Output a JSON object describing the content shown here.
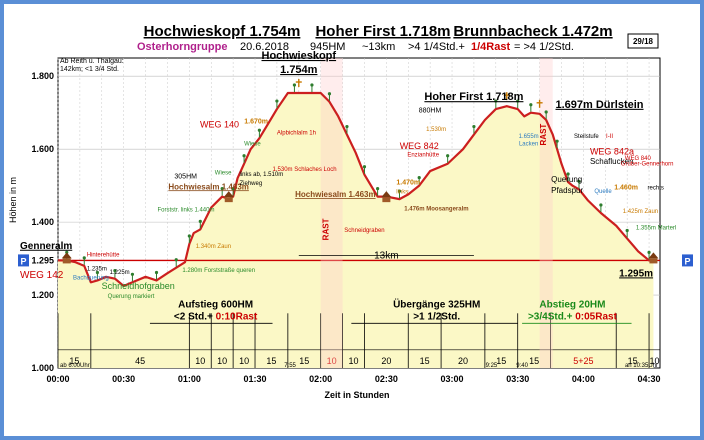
{
  "header": {
    "title_parts": [
      "Hochwieskopf 1.754m",
      "Hoher First 1.718m",
      "Brunnbacheck 1.472m"
    ],
    "group": "Osterhorngruppe",
    "date": "20.6.2018",
    "hm": "945HM",
    "dist": "~13km",
    "time_a": ">4 1/4Std.+",
    "rast": "1/4Rast",
    "time_b": "= >4 1/2Std.",
    "badge": "29/18",
    "note_line1": "Ab Reith ü. Thalgau:",
    "note_line2": "142km; <1 3/4 Std."
  },
  "chart_data": {
    "type": "area",
    "xlabel": "Zeit in Stunden",
    "ylabel": "Höhen in m",
    "x_unit": "minutes",
    "xlim": [
      0,
      275
    ],
    "ylim": [
      1000,
      1850
    ],
    "xticks": [
      {
        "value": 0,
        "label": "00:00"
      },
      {
        "value": 30,
        "label": "00:30"
      },
      {
        "value": 60,
        "label": "01:00"
      },
      {
        "value": 90,
        "label": "01:30"
      },
      {
        "value": 120,
        "label": "02:00"
      },
      {
        "value": 150,
        "label": "02:30"
      },
      {
        "value": 180,
        "label": "03:00"
      },
      {
        "value": 210,
        "label": "03:30"
      },
      {
        "value": 240,
        "label": "04:00"
      },
      {
        "value": 270,
        "label": "04:30"
      }
    ],
    "yticks": [
      {
        "value": 1000,
        "label": "1.000"
      },
      {
        "value": 1200,
        "label": "1.200"
      },
      {
        "value": 1295,
        "label": "1.295"
      },
      {
        "value": 1400,
        "label": "1.400"
      },
      {
        "value": 1600,
        "label": "1.600"
      },
      {
        "value": 1800,
        "label": "1.800"
      }
    ],
    "grid": true,
    "series": [
      {
        "x": [
          0,
          4,
          8,
          12,
          15,
          18,
          22,
          26,
          30,
          34,
          40,
          45,
          50,
          54,
          58,
          60,
          62,
          65,
          70,
          75,
          78,
          80,
          82,
          85,
          88,
          92,
          96,
          100,
          105,
          108,
          112,
          116,
          120,
          124,
          128,
          132,
          136,
          140,
          144,
          146,
          150,
          156,
          160,
          165,
          170,
          178,
          185,
          190,
          195,
          200,
          205,
          210,
          213,
          216,
          220,
          223,
          226,
          228,
          230,
          233,
          235,
          238,
          242,
          248,
          255,
          260,
          265,
          270,
          272
        ],
        "y": [
          1295,
          1295,
          1290,
          1280,
          1235,
          1240,
          1250,
          1245,
          1225,
          1235,
          1250,
          1240,
          1260,
          1275,
          1290,
          1340,
          1370,
          1380,
          1440,
          1470,
          1463,
          1470,
          1520,
          1560,
          1600,
          1630,
          1670,
          1710,
          1754,
          1754,
          1754,
          1754,
          1754,
          1730,
          1690,
          1640,
          1590,
          1530,
          1490,
          1470,
          1470,
          1463,
          1476,
          1500,
          1540,
          1560,
          1600,
          1640,
          1680,
          1710,
          1718,
          1710,
          1690,
          1700,
          1697,
          1680,
          1640,
          1600,
          1560,
          1510,
          1500,
          1490,
          1460,
          1425,
          1390,
          1355,
          1320,
          1295,
          1295
        ]
      }
    ],
    "segments": [
      {
        "label": "15",
        "x": [
          0,
          15
        ],
        "color": "#000000"
      },
      {
        "label": "45",
        "x": [
          15,
          60
        ],
        "color": "#000000"
      },
      {
        "label": "10",
        "x": [
          60,
          70
        ],
        "color": "#000000"
      },
      {
        "label": "10",
        "x": [
          70,
          80
        ],
        "color": "#000000"
      },
      {
        "label": "10",
        "x": [
          80,
          90
        ],
        "color": "#000000"
      },
      {
        "label": "15",
        "x": [
          90,
          105
        ],
        "color": "#000000"
      },
      {
        "label": "15",
        "x": [
          105,
          120
        ],
        "color": "#000000"
      },
      {
        "label": "10",
        "x": [
          120,
          130
        ],
        "color": "#cc0000"
      },
      {
        "label": "10",
        "x": [
          130,
          140
        ],
        "color": "#000000"
      },
      {
        "label": "20",
        "x": [
          140,
          160
        ],
        "color": "#000000"
      },
      {
        "label": "15",
        "x": [
          160,
          175
        ],
        "color": "#000000"
      },
      {
        "label": "20",
        "x": [
          175,
          195
        ],
        "color": "#000000"
      },
      {
        "label": "15",
        "x": [
          195,
          210
        ],
        "color": "#000000"
      },
      {
        "label": "15",
        "x": [
          210,
          225
        ],
        "color": "#000000"
      },
      {
        "label": "5+25",
        "x": [
          225,
          255
        ],
        "color": "#cc0000"
      },
      {
        "label": "15",
        "x": [
          255,
          270
        ],
        "color": "#000000"
      },
      {
        "label": "10",
        "x": [
          270,
          275
        ],
        "color": "#000000"
      }
    ],
    "rast": [
      {
        "x": [
          120,
          130
        ],
        "label": "RAST"
      },
      {
        "x": [
          220,
          226
        ],
        "label": "RAST"
      }
    ],
    "annotations": [
      {
        "text": "Genneralm",
        "x": 0,
        "y": 1305,
        "color": "#000000",
        "size": 10,
        "bold": true,
        "underline": true,
        "anchor": "start",
        "dx": -38,
        "dy": -8
      },
      {
        "text": "WEG 142",
        "x": 0,
        "y": 1280,
        "color": "#cc0000",
        "size": 10,
        "anchor": "start",
        "dx": -38,
        "dy": 12
      },
      {
        "text": "Hinterehütte",
        "x": 4,
        "y": 1295,
        "color": "#cc0000",
        "size": 6,
        "anchor": "start",
        "dx": 20,
        "dy": -4
      },
      {
        "text": "1.235m",
        "x": 15,
        "y": 1235,
        "color": "#000000",
        "size": 6,
        "anchor": "middle",
        "dx": 6,
        "dy": -12
      },
      {
        "text": "Bachquerung",
        "x": 15,
        "y": 1235,
        "color": "#2c7bc0",
        "size": 6,
        "anchor": "middle",
        "dx": 0,
        "dy": -3
      },
      {
        "text": "1.225m",
        "x": 30,
        "y": 1225,
        "color": "#000000",
        "size": 6,
        "anchor": "middle",
        "dx": -4,
        "dy": -12
      },
      {
        "text": "Schneidhofgraben",
        "x": 30,
        "y": 1225,
        "color": "#2a8a2a",
        "size": 9,
        "anchor": "start",
        "dx": -22,
        "dy": 3
      },
      {
        "text": "Querung markiert",
        "x": 30,
        "y": 1225,
        "color": "#2a8a2a",
        "size": 6,
        "anchor": "start",
        "dx": -16,
        "dy": 12
      },
      {
        "text": "1.280m Forststraße queren",
        "x": 55,
        "y": 1280,
        "color": "#2a8a2a",
        "size": 6,
        "anchor": "start",
        "dx": 4,
        "dy": 6
      },
      {
        "text": "1.340m Zaun",
        "x": 62,
        "y": 1340,
        "color": "#c87a00",
        "size": 6,
        "anchor": "start",
        "dx": 2,
        "dy": 4
      },
      {
        "text": "Forststr. links 1.440m",
        "x": 50,
        "y": 1440,
        "color": "#2a8a2a",
        "size": 6,
        "anchor": "start",
        "dx": -10,
        "dy": 4
      },
      {
        "text": "305HM",
        "x": 55,
        "y": 1520,
        "color": "#000000",
        "size": 7,
        "anchor": "start",
        "dx": -4,
        "dy": 0
      },
      {
        "text": "Hochwiesalm 1.463m",
        "x": 55,
        "y": 1490,
        "color": "#8a4b1c",
        "size": 8,
        "bold": true,
        "underline": true,
        "anchor": "start",
        "dx": -10,
        "dy": 0
      },
      {
        "text": "Wiese",
        "x": 80,
        "y": 1530,
        "color": "#2a8a2a",
        "size": 6,
        "anchor": "middle",
        "dx": -10,
        "dy": 0
      },
      {
        "text": "links ab, 1.510m",
        "x": 82,
        "y": 1510,
        "color": "#000000",
        "size": 6,
        "anchor": "start",
        "dx": 2,
        "dy": -6
      },
      {
        "text": "Ziehweg",
        "x": 82,
        "y": 1510,
        "color": "#000000",
        "size": 6,
        "anchor": "start",
        "dx": 2,
        "dy": 3
      },
      {
        "text": "WEG 140",
        "x": 82,
        "y": 1660,
        "color": "#cc0000",
        "size": 9,
        "anchor": "middle",
        "dx": -18,
        "dy": 0
      },
      {
        "text": "Wiese",
        "x": 85,
        "y": 1610,
        "color": "#2a8a2a",
        "size": 6,
        "anchor": "start",
        "dx": 0,
        "dy": 0
      },
      {
        "text": "1.670m",
        "x": 96,
        "y": 1670,
        "color": "#c87a00",
        "size": 7,
        "bold": true,
        "anchor": "middle",
        "dx": -12,
        "dy": 0
      },
      {
        "text": "1.530m Schlaches Loch",
        "x": 98,
        "y": 1540,
        "color": "#cc0000",
        "size": 6,
        "anchor": "start",
        "dx": 0,
        "dy": 0
      },
      {
        "text": "Alpbichlalm 1h",
        "x": 100,
        "y": 1640,
        "color": "#cc0000",
        "size": 6,
        "anchor": "start",
        "dx": 0,
        "dy": 0
      },
      {
        "text": "Hochwieskopf",
        "x": 110,
        "y": 1754,
        "color": "#000000",
        "size": 11,
        "bold": true,
        "underline": true,
        "anchor": "middle",
        "dx": 0,
        "dy": -34
      },
      {
        "text": "1.754m",
        "x": 110,
        "y": 1754,
        "color": "#000000",
        "size": 11,
        "bold": true,
        "underline": true,
        "anchor": "middle",
        "dx": 0,
        "dy": -20
      },
      {
        "text": "Hochwiesalm 1.463m",
        "x": 146,
        "y": 1463,
        "color": "#8a4b1c",
        "size": 8,
        "bold": true,
        "underline": true,
        "anchor": "end",
        "dx": -2,
        "dy": -2
      },
      {
        "text": "Schneidgraben",
        "x": 140,
        "y": 1450,
        "color": "#cc0000",
        "size": 6,
        "anchor": "middle",
        "dx": 0,
        "dy": 28
      },
      {
        "text": "1.470m",
        "x": 160,
        "y": 1470,
        "color": "#c87a00",
        "size": 7,
        "bold": true,
        "anchor": "middle",
        "dx": 0,
        "dy": -12
      },
      {
        "text": "links",
        "x": 160,
        "y": 1470,
        "color": "#c87a00",
        "size": 6,
        "anchor": "middle",
        "dx": -6,
        "dy": -3
      },
      {
        "text": "1.476m Moosangeralm",
        "x": 160,
        "y": 1476,
        "color": "#8a4b1c",
        "size": 6,
        "bold": true,
        "anchor": "start",
        "dx": -4,
        "dy": 16
      },
      {
        "text": "WEG 842",
        "x": 165,
        "y": 1600,
        "color": "#cc0000",
        "size": 9,
        "anchor": "middle",
        "dx": 0,
        "dy": 0
      },
      {
        "text": "Enzianhütte",
        "x": 165,
        "y": 1580,
        "color": "#cc0000",
        "size": 6,
        "anchor": "middle",
        "dx": 4,
        "dy": 0
      },
      {
        "text": "1.530m",
        "x": 170,
        "y": 1650,
        "color": "#c87a00",
        "size": 6,
        "anchor": "middle",
        "dx": 6,
        "dy": 0
      },
      {
        "text": "Hoher First 1.718m",
        "x": 190,
        "y": 1718,
        "color": "#000000",
        "size": 11,
        "bold": true,
        "underline": true,
        "anchor": "middle",
        "dx": 0,
        "dy": -6
      },
      {
        "text": "880HM",
        "x": 180,
        "y": 1700,
        "color": "#000000",
        "size": 7,
        "anchor": "middle",
        "dx": -22,
        "dy": 0
      },
      {
        "text": "1.697m Dürlstein",
        "x": 230,
        "y": 1697,
        "color": "#000000",
        "size": 11,
        "bold": true,
        "underline": true,
        "anchor": "start",
        "dx": -6,
        "dy": -6
      },
      {
        "text": "1.655m",
        "x": 215,
        "y": 1630,
        "color": "#2c7bc0",
        "size": 6,
        "anchor": "middle",
        "dx": 0,
        "dy": 0
      },
      {
        "text": "Lacken",
        "x": 215,
        "y": 1610,
        "color": "#2c7bc0",
        "size": 6,
        "anchor": "middle",
        "dx": 0,
        "dy": 0
      },
      {
        "text": "Steilstufe",
        "x": 233,
        "y": 1630,
        "color": "#000000",
        "size": 6,
        "anchor": "start",
        "dx": 6,
        "dy": 0
      },
      {
        "text": "I-II",
        "x": 233,
        "y": 1630,
        "color": "#cc0000",
        "size": 6,
        "anchor": "start",
        "dx": 38,
        "dy": 0
      },
      {
        "text": "WEG 842a",
        "x": 243,
        "y": 1585,
        "color": "#cc0000",
        "size": 9,
        "anchor": "start",
        "dx": 0,
        "dy": 0
      },
      {
        "text": "Schaflucken",
        "x": 243,
        "y": 1560,
        "color": "#000000",
        "size": 8,
        "anchor": "start",
        "dx": 0,
        "dy": 0
      },
      {
        "text": "Querung",
        "x": 228,
        "y": 1510,
        "color": "#000000",
        "size": 8,
        "anchor": "start",
        "dx": -6,
        "dy": 0
      },
      {
        "text": "Pfadspur",
        "x": 228,
        "y": 1480,
        "color": "#000000",
        "size": 8,
        "anchor": "start",
        "dx": -6,
        "dy": 0
      },
      {
        "text": "Quelle",
        "x": 245,
        "y": 1480,
        "color": "#2c7bc0",
        "size": 6,
        "anchor": "start",
        "dx": 0,
        "dy": 0
      },
      {
        "text": "WEG 840",
        "x": 258,
        "y": 1570,
        "color": "#cc0000",
        "size": 6,
        "anchor": "start",
        "dx": 2,
        "dy": 0
      },
      {
        "text": "Gruber-Gennerhorn",
        "x": 258,
        "y": 1555,
        "color": "#cc0000",
        "size": 6,
        "anchor": "start",
        "dx": -2,
        "dy": 0
      },
      {
        "text": "1.460m",
        "x": 255,
        "y": 1490,
        "color": "#c87a00",
        "size": 7,
        "bold": true,
        "anchor": "start",
        "dx": -2,
        "dy": 0
      },
      {
        "text": "rechts",
        "x": 262,
        "y": 1490,
        "color": "#000000",
        "size": 6,
        "anchor": "start",
        "dx": 16,
        "dy": 0
      },
      {
        "text": "1.425m Zaun",
        "x": 258,
        "y": 1425,
        "color": "#c87a00",
        "size": 6,
        "anchor": "start",
        "dx": 0,
        "dy": 0
      },
      {
        "text": "1.355m Marterl",
        "x": 264,
        "y": 1380,
        "color": "#2a8a2a",
        "size": 6,
        "anchor": "start",
        "dx": 0,
        "dy": 0
      },
      {
        "text": "1.295m",
        "x": 270,
        "y": 1295,
        "color": "#000000",
        "size": 10,
        "bold": true,
        "underline": true,
        "anchor": "end",
        "dx": 4,
        "dy": 16
      },
      {
        "text": "13km",
        "x": 150,
        "y": 1300,
        "color": "#000000",
        "size": 10,
        "anchor": "middle",
        "dx": 0,
        "dy": 0
      },
      {
        "text": "7:55",
        "x": 106,
        "y": 1000,
        "color": "#000000",
        "size": 6,
        "anchor": "middle",
        "dx": 0,
        "dy": -1
      },
      {
        "text": "9:25",
        "x": 198,
        "y": 1000,
        "color": "#000000",
        "size": 6,
        "anchor": "middle",
        "dx": 0,
        "dy": -1
      },
      {
        "text": "9:40",
        "x": 212,
        "y": 1000,
        "color": "#000000",
        "size": 6,
        "anchor": "middle",
        "dx": 0,
        "dy": -1
      },
      {
        "text": "ab 6:00Uhr",
        "x": 0,
        "y": 1000,
        "color": "#000000",
        "size": 6,
        "anchor": "start",
        "dx": 2,
        "dy": -1
      },
      {
        "text": "an 10:35Uhr",
        "x": 275,
        "y": 1000,
        "color": "#000000",
        "size": 6,
        "anchor": "end",
        "dx": -2,
        "dy": -1
      }
    ],
    "summary_boxes": [
      {
        "line1": "Aufstieg 600HM",
        "line2a": "<2 Std.+ ",
        "line2b": "0:10Rast",
        "cx": 72,
        "color1": "#000000"
      },
      {
        "line1": "Übergänge 325HM",
        "line2a": ">1 1/2Std.",
        "line2b": "",
        "cx": 173,
        "color1": "#000000"
      },
      {
        "line1": "Abstieg 20HM",
        "line2a": ">3/4Std.+ ",
        "line2b": "0:05Rast",
        "cx": 235,
        "color1": "#1a8a1a"
      }
    ],
    "p_marker": "P",
    "markers": [
      {
        "label": "hut-icon",
        "x": 4,
        "y": 1295
      },
      {
        "label": "hut-icon",
        "x": 78,
        "y": 1463
      },
      {
        "label": "hut-icon",
        "x": 150,
        "y": 1463
      },
      {
        "label": "hut-icon",
        "x": 272,
        "y": 1295
      }
    ]
  }
}
